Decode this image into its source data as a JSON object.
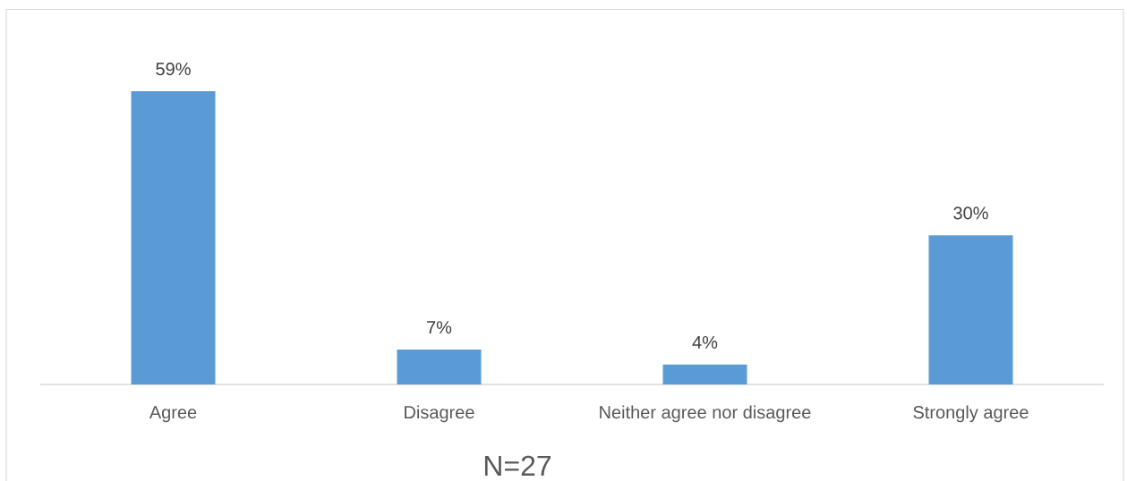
{
  "chart_data": {
    "type": "bar",
    "categories": [
      "Agree",
      "Disagree",
      "Neither agree nor disagree",
      "Strongly agree"
    ],
    "values": [
      59,
      7,
      4,
      30
    ],
    "value_labels": [
      "59%",
      "7%",
      "4%",
      "30%"
    ],
    "color": "#5b9bd5",
    "tick_labels": "x",
    "annotations": [
      "N=27"
    ]
  }
}
